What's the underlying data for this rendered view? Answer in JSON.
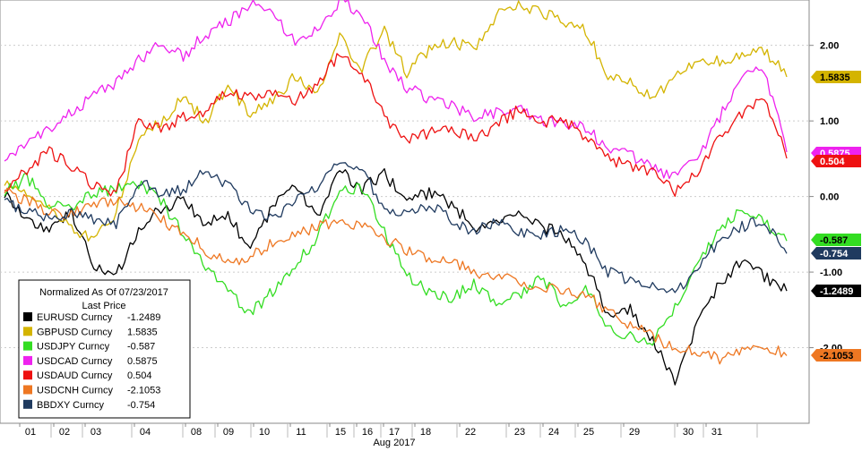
{
  "chart_data": {
    "type": "line",
    "title": "",
    "xlabel": "Aug 2017",
    "ylabel": "",
    "ylim": [
      -3.0,
      2.6
    ],
    "yticks": [
      2.0,
      1.0,
      0.0,
      -1.0,
      -2.0
    ],
    "ytick_labels": [
      "2.00",
      "1.00",
      "0.00",
      "-1.00",
      "-2.00"
    ],
    "x_day_labels": [
      "01",
      "02",
      "03",
      "04",
      "08",
      "09",
      "10",
      "11",
      "15",
      "16",
      "17",
      "18",
      "22",
      "23",
      "24",
      "25",
      "29",
      "30",
      "31"
    ],
    "grid": true,
    "legend": {
      "placement": "bottom-left",
      "header_line1": "Normalized As Of 07/23/2017",
      "header_line2": "Last Price",
      "entries": [
        {
          "name": "EURUSD Curncy",
          "value": "-1.2489"
        },
        {
          "name": "GBPUSD Curncy",
          "value": "1.5835"
        },
        {
          "name": "USDJPY Curncy",
          "value": "-0.587"
        },
        {
          "name": "USDCAD Curncy",
          "value": "0.5875"
        },
        {
          "name": "USDAUD Curncy",
          "value": "0.504"
        },
        {
          "name": "USDCNH Curncy",
          "value": "-2.1053"
        },
        {
          "name": "BBDXY Curncy",
          "value": "-0.754"
        }
      ]
    },
    "last_value_tags": [
      "1.5835",
      "0.5875",
      "0.504",
      "-0.587",
      "-0.754",
      "-1.2489",
      "-2.1053"
    ],
    "series": [
      {
        "name": "EURUSD Curncy",
        "color": "#000000",
        "values": [
          0.05,
          -0.3,
          -0.45,
          -0.2,
          -0.95,
          -1.05,
          -0.45,
          -0.15,
          -0.05,
          -0.35,
          -0.25,
          -0.7,
          -0.15,
          0.2,
          -0.3,
          0.35,
          0.1,
          0.3,
          -0.05,
          0.05,
          -0.1,
          -0.4,
          -0.35,
          -0.25,
          -0.4,
          -0.5,
          -0.9,
          -1.55,
          -1.5,
          -1.9,
          -2.45,
          -1.7,
          -1.15,
          -0.85,
          -1.05,
          -1.2489
        ]
      },
      {
        "name": "GBPUSD Curncy",
        "color": "#d4b400",
        "values": [
          0.2,
          0.05,
          -0.15,
          -0.4,
          -0.6,
          -0.2,
          0.75,
          1.0,
          1.3,
          1.0,
          1.45,
          1.1,
          1.25,
          1.6,
          1.35,
          2.1,
          1.7,
          2.2,
          1.65,
          1.95,
          2.05,
          1.95,
          2.4,
          2.55,
          2.45,
          2.3,
          2.2,
          1.6,
          1.5,
          1.3,
          1.6,
          1.75,
          1.8,
          1.85,
          1.95,
          1.5835
        ]
      },
      {
        "name": "USDJPY Curncy",
        "color": "#33dd22",
        "values": [
          0.05,
          0.25,
          -0.1,
          -0.15,
          0.05,
          0.1,
          0.15,
          -0.05,
          -0.5,
          -0.9,
          -1.25,
          -1.55,
          -1.25,
          -0.9,
          -0.55,
          0.1,
          0.1,
          -0.45,
          -1.05,
          -1.25,
          -1.35,
          -1.15,
          -1.4,
          -1.3,
          -1.05,
          -1.45,
          -1.2,
          -1.75,
          -1.85,
          -1.95,
          -1.45,
          -0.9,
          -0.45,
          -0.15,
          -0.3,
          -0.587
        ]
      },
      {
        "name": "USDCAD Curncy",
        "color": "#ee22ee",
        "values": [
          0.5,
          0.7,
          0.9,
          1.1,
          1.35,
          1.5,
          1.8,
          2.05,
          1.85,
          2.15,
          2.3,
          2.55,
          2.4,
          2.05,
          2.2,
          2.6,
          2.4,
          1.8,
          1.45,
          1.3,
          1.2,
          1.05,
          1.1,
          1.2,
          1.0,
          0.95,
          0.9,
          0.65,
          0.55,
          0.4,
          0.25,
          0.5,
          1.05,
          1.55,
          1.7,
          0.5875
        ]
      },
      {
        "name": "USDAUD Curncy",
        "color": "#ee1111",
        "values": [
          0.1,
          0.35,
          0.6,
          0.4,
          0.15,
          0.05,
          1.0,
          0.9,
          1.05,
          1.1,
          1.4,
          1.3,
          1.35,
          1.25,
          1.5,
          1.9,
          1.65,
          1.05,
          0.75,
          0.85,
          0.9,
          0.75,
          0.95,
          1.15,
          0.95,
          1.05,
          0.75,
          0.5,
          0.4,
          0.3,
          0.05,
          0.3,
          0.8,
          1.1,
          1.35,
          0.504
        ]
      },
      {
        "name": "USDCNH Curncy",
        "color": "#ee7722",
        "values": [
          0.05,
          -0.05,
          -0.2,
          -0.25,
          -0.1,
          -0.05,
          -0.15,
          -0.3,
          -0.5,
          -0.7,
          -0.9,
          -0.8,
          -0.6,
          -0.5,
          -0.4,
          -0.35,
          -0.4,
          -0.55,
          -0.7,
          -0.8,
          -0.85,
          -1.0,
          -1.05,
          -1.1,
          -1.2,
          -1.25,
          -1.3,
          -1.5,
          -1.7,
          -1.85,
          -2.0,
          -2.05,
          -2.15,
          -2.0,
          -1.95,
          -2.1053
        ]
      },
      {
        "name": "BBDXY Curncy",
        "color": "#1f3a5f",
        "values": [
          -0.05,
          -0.2,
          -0.3,
          -0.2,
          -0.3,
          -0.35,
          0.2,
          0.05,
          0.1,
          0.35,
          0.15,
          -0.15,
          -0.3,
          -0.05,
          0.15,
          0.5,
          0.35,
          -0.15,
          -0.2,
          -0.1,
          -0.3,
          -0.5,
          -0.3,
          -0.45,
          -0.5,
          -0.45,
          -0.6,
          -1.0,
          -1.1,
          -1.15,
          -1.3,
          -0.9,
          -0.6,
          -0.4,
          -0.3,
          -0.754
        ]
      }
    ]
  }
}
